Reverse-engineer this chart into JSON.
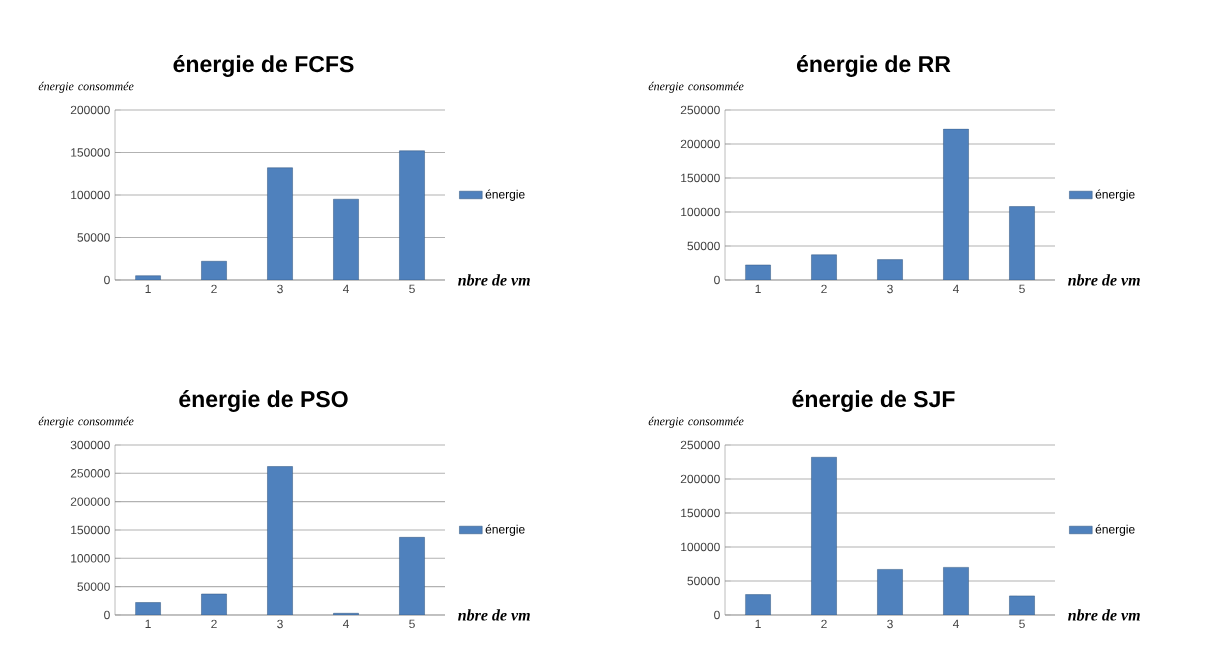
{
  "chart_data": [
    {
      "type": "bar",
      "title": "énergie de FCFS",
      "ylabel": "énergie consommée",
      "xlabel": "nbre de vm",
      "categories": [
        "1",
        "2",
        "3",
        "4",
        "5"
      ],
      "series": [
        {
          "name": "énergie",
          "color": "#4f81bd",
          "values": [
            5000,
            22000,
            132000,
            95000,
            152000
          ]
        }
      ],
      "ylim": [
        0,
        200000
      ],
      "yticks": [
        0,
        50000,
        100000,
        150000,
        200000
      ],
      "grid": "y",
      "legend": "right"
    },
    {
      "type": "bar",
      "title": "énergie de RR",
      "ylabel": "énergie consommée",
      "xlabel": "nbre de vm",
      "categories": [
        "1",
        "2",
        "3",
        "4",
        "5"
      ],
      "series": [
        {
          "name": "énergie",
          "color": "#4f81bd",
          "values": [
            22000,
            37000,
            30000,
            222000,
            108000
          ]
        }
      ],
      "ylim": [
        0,
        250000
      ],
      "yticks": [
        0,
        50000,
        100000,
        150000,
        200000,
        250000
      ],
      "grid": "y",
      "legend": "right"
    },
    {
      "type": "bar",
      "title": "énergie de PSO",
      "ylabel": "énergie consommée",
      "xlabel": "nbre de vm",
      "categories": [
        "1",
        "2",
        "3",
        "4",
        "5"
      ],
      "series": [
        {
          "name": "énergie",
          "color": "#4f81bd",
          "values": [
            22000,
            37000,
            262000,
            3000,
            137000
          ]
        }
      ],
      "ylim": [
        0,
        300000
      ],
      "yticks": [
        0,
        50000,
        100000,
        150000,
        200000,
        250000,
        300000
      ],
      "grid": "y",
      "legend": "right"
    },
    {
      "type": "bar",
      "title": "énergie de SJF",
      "ylabel": "énergie consommée",
      "xlabel": "nbre de vm",
      "categories": [
        "1",
        "2",
        "3",
        "4",
        "5"
      ],
      "series": [
        {
          "name": "énergie",
          "color": "#4f81bd",
          "values": [
            30000,
            232000,
            67000,
            70000,
            28000
          ]
        }
      ],
      "ylim": [
        0,
        250000
      ],
      "yticks": [
        0,
        50000,
        100000,
        150000,
        200000,
        250000
      ],
      "grid": "y",
      "legend": "right"
    }
  ]
}
